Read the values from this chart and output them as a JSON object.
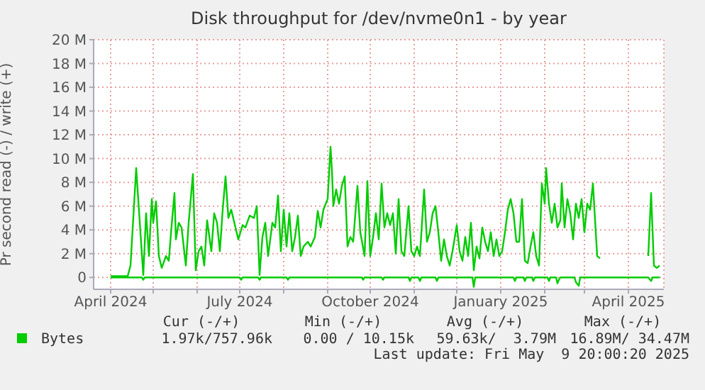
{
  "chart_data": {
    "type": "line",
    "title": "Disk throughput for /dev/nvme0n1 - by year",
    "ylabel": "Pr second read (-) / write (+)",
    "xlim": [
      "2024-03-20",
      "2025-04-26"
    ],
    "xticks": [
      {
        "value": "2024-04-01",
        "label": "April 2024"
      },
      {
        "value": "2024-05-01",
        "label": null
      },
      {
        "value": "2024-06-01",
        "label": null
      },
      {
        "value": "2024-07-01",
        "label": "July 2024"
      },
      {
        "value": "2024-08-01",
        "label": null
      },
      {
        "value": "2024-09-01",
        "label": null
      },
      {
        "value": "2024-10-01",
        "label": "October 2024"
      },
      {
        "value": "2024-11-01",
        "label": null
      },
      {
        "value": "2024-12-01",
        "label": null
      },
      {
        "value": "2025-01-01",
        "label": "January 2025"
      },
      {
        "value": "2025-02-01",
        "label": null
      },
      {
        "value": "2025-03-01",
        "label": null
      },
      {
        "value": "2025-04-01",
        "label": "April 2025"
      }
    ],
    "ylim": [
      -1,
      20
    ],
    "yticks": [
      {
        "value": 0,
        "label": "0"
      },
      {
        "value": 2,
        "label": "2 M"
      },
      {
        "value": 4,
        "label": "4 M"
      },
      {
        "value": 6,
        "label": "6 M"
      },
      {
        "value": 8,
        "label": "8 M"
      },
      {
        "value": 10,
        "label": "10 M"
      },
      {
        "value": 12,
        "label": "12 M"
      },
      {
        "value": 14,
        "label": "14 M"
      },
      {
        "value": 16,
        "label": "16 M"
      },
      {
        "value": 18,
        "label": "18 M"
      },
      {
        "value": 20,
        "label": "20 M"
      }
    ],
    "grid": true,
    "legend": "bottom",
    "marker": "none",
    "line_style": "solid",
    "series": [
      {
        "name": "Bytes",
        "color": "#00cc00",
        "x": [
          "2024-04-01",
          "2024-04-13",
          "2024-04-15",
          "2024-04-19",
          "2024-04-24",
          "2024-04-26",
          "2024-04-28",
          "2024-04-30",
          "2024-05-01",
          "2024-05-03",
          "2024-05-05",
          "2024-05-07",
          "2024-05-10",
          "2024-05-12",
          "2024-05-14",
          "2024-05-16",
          "2024-05-17",
          "2024-05-19",
          "2024-05-21",
          "2024-05-24",
          "2024-05-26",
          "2024-05-29",
          "2024-05-31",
          "2024-06-02",
          "2024-06-04",
          "2024-06-06",
          "2024-06-08",
          "2024-06-11",
          "2024-06-13",
          "2024-06-15",
          "2024-06-17",
          "2024-06-19",
          "2024-06-21",
          "2024-06-23",
          "2024-06-25",
          "2024-06-28",
          "2024-06-30",
          "2024-07-03",
          "2024-07-05",
          "2024-07-08",
          "2024-07-11",
          "2024-07-13",
          "2024-07-15",
          "2024-07-17",
          "2024-07-19",
          "2024-07-21",
          "2024-07-24",
          "2024-07-26",
          "2024-07-28",
          "2024-07-30",
          "2024-08-01",
          "2024-08-03",
          "2024-08-05",
          "2024-08-07",
          "2024-08-09",
          "2024-08-11",
          "2024-08-13",
          "2024-08-15",
          "2024-08-18",
          "2024-08-20",
          "2024-08-23",
          "2024-08-25",
          "2024-08-27",
          "2024-08-29",
          "2024-09-01",
          "2024-09-03",
          "2024-09-04",
          "2024-09-05",
          "2024-09-07",
          "2024-09-09",
          "2024-09-11",
          "2024-09-13",
          "2024-09-15",
          "2024-09-17",
          "2024-09-19",
          "2024-09-22",
          "2024-09-24",
          "2024-09-27",
          "2024-09-29",
          "2024-10-01",
          "2024-10-03",
          "2024-10-05",
          "2024-10-07",
          "2024-10-09",
          "2024-10-11",
          "2024-10-13",
          "2024-10-15",
          "2024-10-17",
          "2024-10-19",
          "2024-10-21",
          "2024-10-23",
          "2024-10-25",
          "2024-10-28",
          "2024-10-30",
          "2024-11-01",
          "2024-11-03",
          "2024-11-05",
          "2024-11-08",
          "2024-11-10",
          "2024-11-12",
          "2024-11-14",
          "2024-11-16",
          "2024-11-18",
          "2024-11-20",
          "2024-11-22",
          "2024-11-24",
          "2024-11-26",
          "2024-11-28",
          "2024-12-01",
          "2024-12-03",
          "2024-12-05",
          "2024-12-07",
          "2024-12-09",
          "2024-12-11",
          "2024-12-13",
          "2024-12-15",
          "2024-12-17",
          "2024-12-19",
          "2024-12-21",
          "2024-12-23",
          "2024-12-25",
          "2024-12-27",
          "2024-12-29",
          "2024-12-31",
          "2025-01-02",
          "2025-01-04",
          "2025-01-06",
          "2025-01-08",
          "2025-01-10",
          "2025-01-12",
          "2025-01-14",
          "2025-01-16",
          "2025-01-18",
          "2025-01-20",
          "2025-01-22",
          "2025-01-24",
          "2025-01-26",
          "2025-01-28",
          "2025-01-30",
          "2025-02-01",
          "2025-02-02",
          "2025-02-04",
          "2025-02-06",
          "2025-02-08",
          "2025-02-10",
          "2025-02-12",
          "2025-02-13",
          "2025-02-15",
          "2025-02-17",
          "2025-02-19",
          "2025-02-21",
          "2025-02-23",
          "2025-02-25",
          "2025-02-27",
          "2025-03-01",
          "2025-03-03",
          "2025-03-05",
          "2025-03-07",
          "2025-03-09",
          "2025-03-10",
          "2025-03-12",
          "2025-03-28",
          "2025-04-15",
          "2025-04-17",
          "2025-04-19",
          "2025-04-21",
          "2025-04-23"
        ],
        "values": [
          0.1,
          0.1,
          1.0,
          9.2,
          0.2,
          5.4,
          1.8,
          6.6,
          4.6,
          6.4,
          1.8,
          0.8,
          1.8,
          1.4,
          4.4,
          7.1,
          3.2,
          4.6,
          4.2,
          1.0,
          4.6,
          8.7,
          0.6,
          2.2,
          2.6,
          1.0,
          4.8,
          2.2,
          5.4,
          4.6,
          2.2,
          5.7,
          8.5,
          5.0,
          5.7,
          4.2,
          3.2,
          4.4,
          4.2,
          5.2,
          5.0,
          6.0,
          0.2,
          3.4,
          4.6,
          1.8,
          4.6,
          4.2,
          6.9,
          2.2,
          5.7,
          2.6,
          5.4,
          2.2,
          3.4,
          5.2,
          1.8,
          2.6,
          3.0,
          2.6,
          3.4,
          5.6,
          4.2,
          5.7,
          6.6,
          11.0,
          9.0,
          6.0,
          7.4,
          6.2,
          7.7,
          8.5,
          2.6,
          3.4,
          3.0,
          7.7,
          3.8,
          1.8,
          8.1,
          1.8,
          3.4,
          5.4,
          3.2,
          7.9,
          4.2,
          5.4,
          4.4,
          5.4,
          2.0,
          6.6,
          2.2,
          1.8,
          6.0,
          2.2,
          1.8,
          2.6,
          1.8,
          7.4,
          3.0,
          3.8,
          5.4,
          6.0,
          3.8,
          1.4,
          3.2,
          1.8,
          1.0,
          2.2,
          4.4,
          2.2,
          1.4,
          3.4,
          1.8,
          4.6,
          0.6,
          2.6,
          1.6,
          4.2,
          3.0,
          2.2,
          3.8,
          1.8,
          3.2,
          1.8,
          2.2,
          3.8,
          5.7,
          6.6,
          5.4,
          3.0,
          3.0,
          6.6,
          1.4,
          1.2,
          2.6,
          3.8,
          1.8,
          1.0,
          7.9,
          6.2,
          9.2,
          6.2,
          4.6,
          6.2,
          4.2,
          4.8,
          7.9,
          4.2,
          6.6,
          5.4,
          3.2,
          6.2,
          5.0,
          6.6,
          3.8,
          6.2,
          5.7,
          7.9,
          3.8,
          1.8,
          1.6,
          null,
          1.8,
          7.1,
          1.0,
          0.8,
          1.0
        ]
      },
      {
        "color": "#00cc00",
        "x": [
          "2024-04-01",
          "2024-04-23",
          "2024-04-24",
          "2024-04-25",
          "2024-07-01",
          "2024-07-02",
          "2024-07-03",
          "2024-07-14",
          "2024-07-15",
          "2024-07-16",
          "2024-08-03",
          "2024-08-04",
          "2024-08-05",
          "2024-09-25",
          "2024-09-26",
          "2024-09-27",
          "2024-10-09",
          "2024-10-10",
          "2024-10-11",
          "2024-10-28",
          "2024-10-29",
          "2024-10-30",
          "2024-11-04",
          "2024-11-05",
          "2024-11-06",
          "2024-11-16",
          "2024-11-17",
          "2024-11-18",
          "2024-12-12",
          "2024-12-13",
          "2024-12-14",
          "2025-01-10",
          "2025-01-11",
          "2025-01-12",
          "2025-01-17",
          "2025-01-18",
          "2025-01-19",
          "2025-01-23",
          "2025-01-24",
          "2025-01-25",
          "2025-02-03",
          "2025-02-04",
          "2025-02-05",
          "2025-02-09",
          "2025-02-10",
          "2025-02-11",
          "2025-02-12",
          "2025-02-22",
          "2025-02-23",
          "2025-02-25",
          "2025-02-26",
          "2025-03-12",
          "2025-04-15",
          "2025-04-17",
          "2025-04-18",
          "2025-04-23"
        ],
        "values": [
          0,
          0,
          -0.2,
          0,
          0,
          -0.2,
          0,
          0,
          -0.2,
          0,
          0,
          -0.2,
          0,
          0,
          -0.2,
          0,
          0,
          -0.2,
          0,
          0,
          -0.3,
          0,
          0,
          -0.3,
          0,
          0,
          -0.3,
          0,
          0,
          -0.8,
          0,
          0,
          -0.3,
          0,
          0,
          -0.3,
          0,
          0,
          -0.3,
          0,
          0,
          -0.3,
          0,
          0,
          -0.5,
          -0.2,
          0,
          0,
          -0.4,
          -0.7,
          0,
          0,
          0,
          -0.3,
          0,
          0
        ]
      }
    ],
    "annotations": [
      "Cur (-/+)",
      "Min (-/+)",
      "Avg (-/+)",
      "Max (-/+)",
      "1.97k/757.96k",
      "0.00 / 10.15k",
      "59.63k/  3.79M",
      "16.89M/ 34.47M",
      "Last update: Fri May  9 20:00:20 2025"
    ]
  }
}
